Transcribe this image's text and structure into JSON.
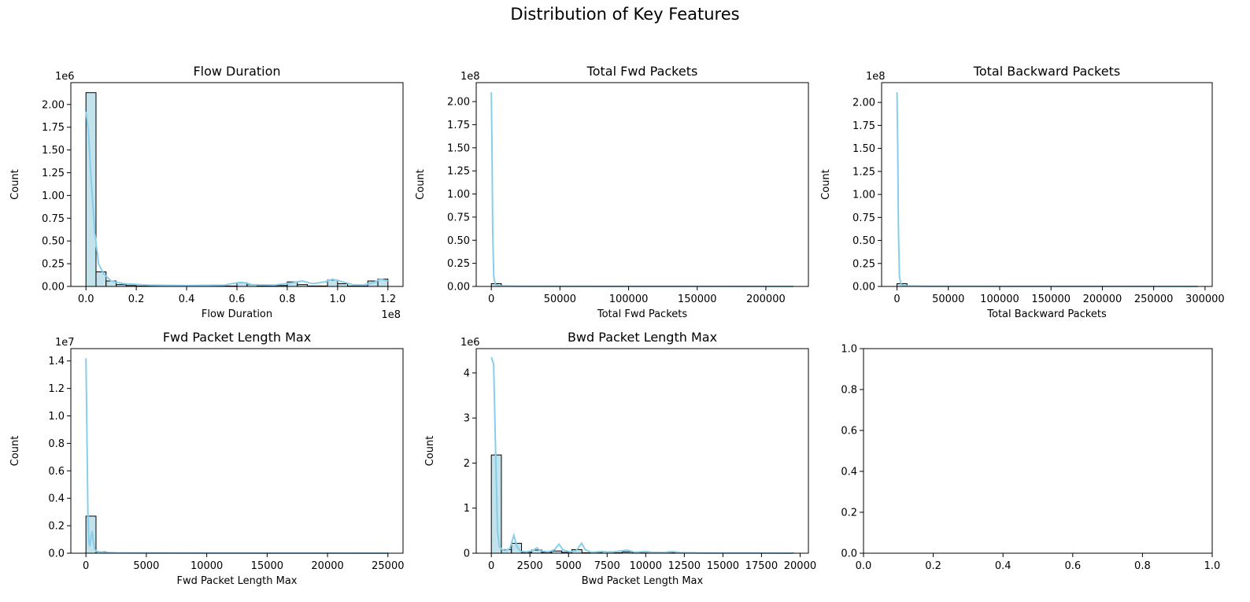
{
  "figure": {
    "title": "Distribution of Key Features"
  },
  "colors": {
    "bar_fill": "#add8e6",
    "bar_edge": "#000000",
    "kde": "#87ceeb",
    "axes": "#000000"
  },
  "chart_data": [
    {
      "type": "bar",
      "title": "Flow Duration",
      "xlabel": "Flow Duration",
      "ylabel": "Count",
      "x_offset_text": "1e8",
      "y_offset_text": "1e6",
      "xlim": [
        -0.06,
        1.26
      ],
      "ylim": [
        0,
        2.24
      ],
      "xticks": [
        0.0,
        0.2,
        0.4,
        0.6,
        0.8,
        1.0,
        1.2
      ],
      "xtick_labels": [
        "0.0",
        "0.2",
        "0.4",
        "0.6",
        "0.8",
        "1.0",
        "1.2"
      ],
      "yticks": [
        0.0,
        0.25,
        0.5,
        0.75,
        1.0,
        1.25,
        1.5,
        1.75,
        2.0
      ],
      "ytick_labels": [
        "0.00",
        "0.25",
        "0.50",
        "0.75",
        "1.00",
        "1.25",
        "1.50",
        "1.75",
        "2.00"
      ],
      "bins": {
        "start": 0.0,
        "width": 0.04,
        "counts": [
          2.13,
          0.16,
          0.06,
          0.02,
          0.01,
          0.005,
          0.005,
          0.01,
          0.005,
          0.005,
          0.005,
          0.005,
          0.005,
          0.005,
          0.005,
          0.04,
          0.02,
          0.005,
          0.005,
          0.01,
          0.05,
          0.02,
          0.005,
          0.005,
          0.07,
          0.03,
          0.005,
          0.005,
          0.06,
          0.08
        ]
      },
      "kde": {
        "x": [
          0.0,
          0.01,
          0.02,
          0.035,
          0.05,
          0.07,
          0.1,
          0.15,
          0.25,
          0.4,
          0.55,
          0.6,
          0.62,
          0.66,
          0.75,
          0.82,
          0.86,
          0.9,
          0.95,
          0.98,
          1.02,
          1.06,
          1.1,
          1.14,
          1.17,
          1.2
        ],
        "y": [
          1.92,
          1.7,
          1.2,
          0.6,
          0.25,
          0.14,
          0.06,
          0.03,
          0.015,
          0.01,
          0.015,
          0.04,
          0.045,
          0.02,
          0.015,
          0.04,
          0.06,
          0.03,
          0.05,
          0.08,
          0.05,
          0.02,
          0.015,
          0.04,
          0.08,
          0.06
        ]
      }
    },
    {
      "type": "bar",
      "title": "Total Fwd Packets",
      "xlabel": "Total Fwd Packets",
      "ylabel": "Count",
      "x_offset_text": "",
      "y_offset_text": "1e8",
      "xlim": [
        -11000,
        231000
      ],
      "ylim": [
        0,
        2.205
      ],
      "xticks": [
        0,
        50000,
        100000,
        150000,
        200000
      ],
      "xtick_labels": [
        "0",
        "50000",
        "100000",
        "150000",
        "200000"
      ],
      "yticks": [
        0.0,
        0.25,
        0.5,
        0.75,
        1.0,
        1.25,
        1.5,
        1.75,
        2.0
      ],
      "ytick_labels": [
        "0.00",
        "0.25",
        "0.50",
        "0.75",
        "1.00",
        "1.25",
        "1.50",
        "1.75",
        "2.00"
      ],
      "bins": {
        "start": 0,
        "width": 7300,
        "counts": [
          0.03,
          0.001,
          0.001,
          0.001,
          0.001,
          0.001,
          0.001,
          0.001,
          0.001,
          0.001,
          0.001,
          0.001,
          0.001,
          0.001,
          0.001,
          0.001,
          0.001,
          0.001,
          0.001,
          0.001,
          0.001,
          0.001,
          0.001,
          0.001,
          0.001,
          0.001,
          0.001,
          0.001,
          0.001,
          0.001
        ]
      },
      "kde": {
        "x": [
          0,
          500,
          1000,
          1800,
          3000,
          6000,
          20000,
          100000,
          220000
        ],
        "y": [
          2.1,
          1.5,
          0.6,
          0.1,
          0.02,
          0.005,
          0.002,
          0.001,
          0.0
        ]
      }
    },
    {
      "type": "bar",
      "title": "Total Backward Packets",
      "xlabel": "Total Backward Packets",
      "ylabel": "Count",
      "x_offset_text": "",
      "y_offset_text": "1e8",
      "xlim": [
        -15000,
        307000
      ],
      "ylim": [
        0,
        2.215
      ],
      "xticks": [
        0,
        50000,
        100000,
        150000,
        200000,
        250000,
        300000
      ],
      "xtick_labels": [
        "0",
        "50000",
        "100000",
        "150000",
        "200000",
        "250000",
        "300000"
      ],
      "yticks": [
        0.0,
        0.25,
        0.5,
        0.75,
        1.0,
        1.25,
        1.5,
        1.75,
        2.0
      ],
      "ytick_labels": [
        "0.00",
        "0.25",
        "0.50",
        "0.75",
        "1.00",
        "1.25",
        "1.50",
        "1.75",
        "2.00"
      ],
      "bins": {
        "start": 0,
        "width": 9760,
        "counts": [
          0.03,
          0.001,
          0.001,
          0.001,
          0.001,
          0.001,
          0.001,
          0.001,
          0.001,
          0.001,
          0.001,
          0.001,
          0.001,
          0.001,
          0.001,
          0.001,
          0.001,
          0.001,
          0.001,
          0.001,
          0.001,
          0.001,
          0.001,
          0.001,
          0.001,
          0.001,
          0.001,
          0.001,
          0.001,
          0.001
        ]
      },
      "kde": {
        "x": [
          0,
          700,
          1400,
          2400,
          4000,
          8000,
          30000,
          150000,
          293000
        ],
        "y": [
          2.11,
          1.5,
          0.6,
          0.1,
          0.02,
          0.005,
          0.002,
          0.001,
          0.0
        ]
      }
    },
    {
      "type": "bar",
      "title": "Fwd Packet Length Max",
      "xlabel": "Fwd Packet Length Max",
      "ylabel": "Count",
      "x_offset_text": "",
      "y_offset_text": "1e7",
      "xlim": [
        -1250,
        26250
      ],
      "ylim": [
        0,
        1.49
      ],
      "xticks": [
        0,
        5000,
        10000,
        15000,
        20000,
        25000
      ],
      "xtick_labels": [
        "0",
        "5000",
        "10000",
        "15000",
        "20000",
        "25000"
      ],
      "yticks": [
        0.0,
        0.2,
        0.4,
        0.6,
        0.8,
        1.0,
        1.2,
        1.4
      ],
      "ytick_labels": [
        "0.0",
        "0.2",
        "0.4",
        "0.6",
        "0.8",
        "1.0",
        "1.2",
        "1.4"
      ],
      "bins": {
        "start": 0,
        "width": 833,
        "counts": [
          0.27,
          0.01,
          0.002,
          0.002,
          0.002,
          0.002,
          0.001,
          0.001,
          0.001,
          0.001,
          0.001,
          0.001,
          0.001,
          0.001,
          0.001,
          0.001,
          0.001,
          0.001,
          0.001,
          0.001,
          0.001,
          0.001,
          0.001,
          0.001,
          0.001,
          0.001,
          0.001,
          0.001,
          0.001,
          0.001
        ]
      },
      "kde": {
        "x": [
          0,
          80,
          160,
          240,
          320,
          420,
          520,
          620,
          720,
          850,
          1100,
          1500,
          2500,
          5000,
          15000,
          25000
        ],
        "y": [
          1.42,
          0.9,
          0.3,
          0.08,
          0.05,
          0.12,
          0.16,
          0.08,
          0.03,
          0.015,
          0.01,
          0.006,
          0.003,
          0.002,
          0.001,
          0.0
        ]
      }
    },
    {
      "type": "bar",
      "title": "Bwd Packet Length Max",
      "xlabel": "Bwd Packet Length Max",
      "ylabel": "Count",
      "x_offset_text": "",
      "y_offset_text": "1e6",
      "xlim": [
        -978,
        20538
      ],
      "ylim": [
        0,
        4.54
      ],
      "xticks": [
        0,
        2500,
        5000,
        7500,
        10000,
        12500,
        15000,
        17500,
        20000
      ],
      "xtick_labels": [
        "0",
        "2500",
        "5000",
        "7500",
        "10000",
        "12500",
        "15000",
        "17500",
        "20000"
      ],
      "yticks": [
        0,
        1,
        2,
        3,
        4
      ],
      "ytick_labels": [
        "0",
        "1",
        "2",
        "3",
        "4"
      ],
      "bins": {
        "start": 0,
        "width": 652,
        "counts": [
          2.18,
          0.08,
          0.22,
          0.02,
          0.07,
          0.02,
          0.05,
          0.02,
          0.08,
          0.01,
          0.02,
          0.03,
          0.01,
          0.03,
          0.01,
          0.005,
          0.02,
          0.005,
          0.01,
          0.005,
          0.005,
          0.005,
          0.005,
          0.005,
          0.005,
          0.005,
          0.005,
          0.005,
          0.005,
          0.005
        ]
      },
      "kde": {
        "x": [
          0,
          150,
          280,
          400,
          520,
          700,
          900,
          1200,
          1460,
          1650,
          1900,
          2300,
          2700,
          2950,
          3200,
          3700,
          4100,
          4380,
          4650,
          5100,
          5500,
          5850,
          6100,
          6500,
          7200,
          7700,
          8400,
          8800,
          9300,
          10000,
          10400,
          11000,
          11700,
          12300,
          14000,
          17000,
          19500
        ],
        "y": [
          4.35,
          4.2,
          2.2,
          0.5,
          0.15,
          0.08,
          0.06,
          0.1,
          0.4,
          0.15,
          0.04,
          0.03,
          0.06,
          0.12,
          0.05,
          0.03,
          0.08,
          0.2,
          0.07,
          0.03,
          0.06,
          0.22,
          0.07,
          0.02,
          0.04,
          0.02,
          0.05,
          0.07,
          0.02,
          0.04,
          0.02,
          0.01,
          0.04,
          0.01,
          0.005,
          0.005,
          0.0
        ]
      }
    },
    {
      "type": "bar",
      "title": "",
      "xlabel": "",
      "ylabel": "",
      "x_offset_text": "",
      "y_offset_text": "",
      "xlim": [
        0,
        1
      ],
      "ylim": [
        0,
        1
      ],
      "xticks": [
        0.0,
        0.2,
        0.4,
        0.6,
        0.8,
        1.0
      ],
      "xtick_labels": [
        "0.0",
        "0.2",
        "0.4",
        "0.6",
        "0.8",
        "1.0"
      ],
      "yticks": [
        0.0,
        0.2,
        0.4,
        0.6,
        0.8,
        1.0
      ],
      "ytick_labels": [
        "0.0",
        "0.2",
        "0.4",
        "0.6",
        "0.8",
        "1.0"
      ],
      "bins": {
        "start": 0,
        "width": 0,
        "counts": []
      },
      "kde": {
        "x": [],
        "y": []
      }
    }
  ]
}
